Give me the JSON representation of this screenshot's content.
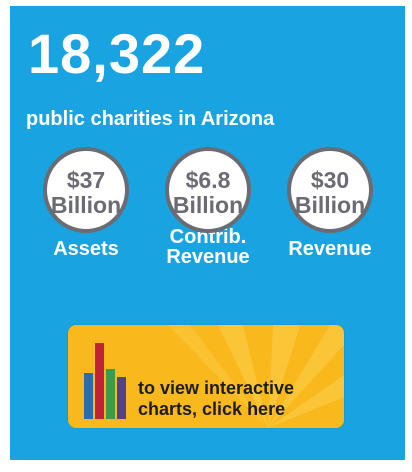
{
  "headline": {
    "count": "18,322",
    "description": "public charities in Arizona"
  },
  "stats": [
    {
      "amount": "$37",
      "unit": "Billion",
      "label_line1": "Assets",
      "label_line2": ""
    },
    {
      "amount": "$6.8",
      "unit": "Billion",
      "label_line1": "Contrib.",
      "label_line2": "Revenue"
    },
    {
      "amount": "$30",
      "unit": "Billion",
      "label_line1": "Revenue",
      "label_line2": ""
    }
  ],
  "cta": {
    "line1": "to view interactive",
    "line2": "charts, click here",
    "icon": "bar-chart-icon"
  },
  "colors": {
    "panel_background": "#1aa3e1",
    "circle_border": "#6b6b73",
    "circle_text": "#6b6b73",
    "cta_background": "#f9b81c",
    "bar_colors": [
      "#2b6cb0",
      "#c0223a",
      "#3f9b46",
      "#5b3f86"
    ]
  }
}
